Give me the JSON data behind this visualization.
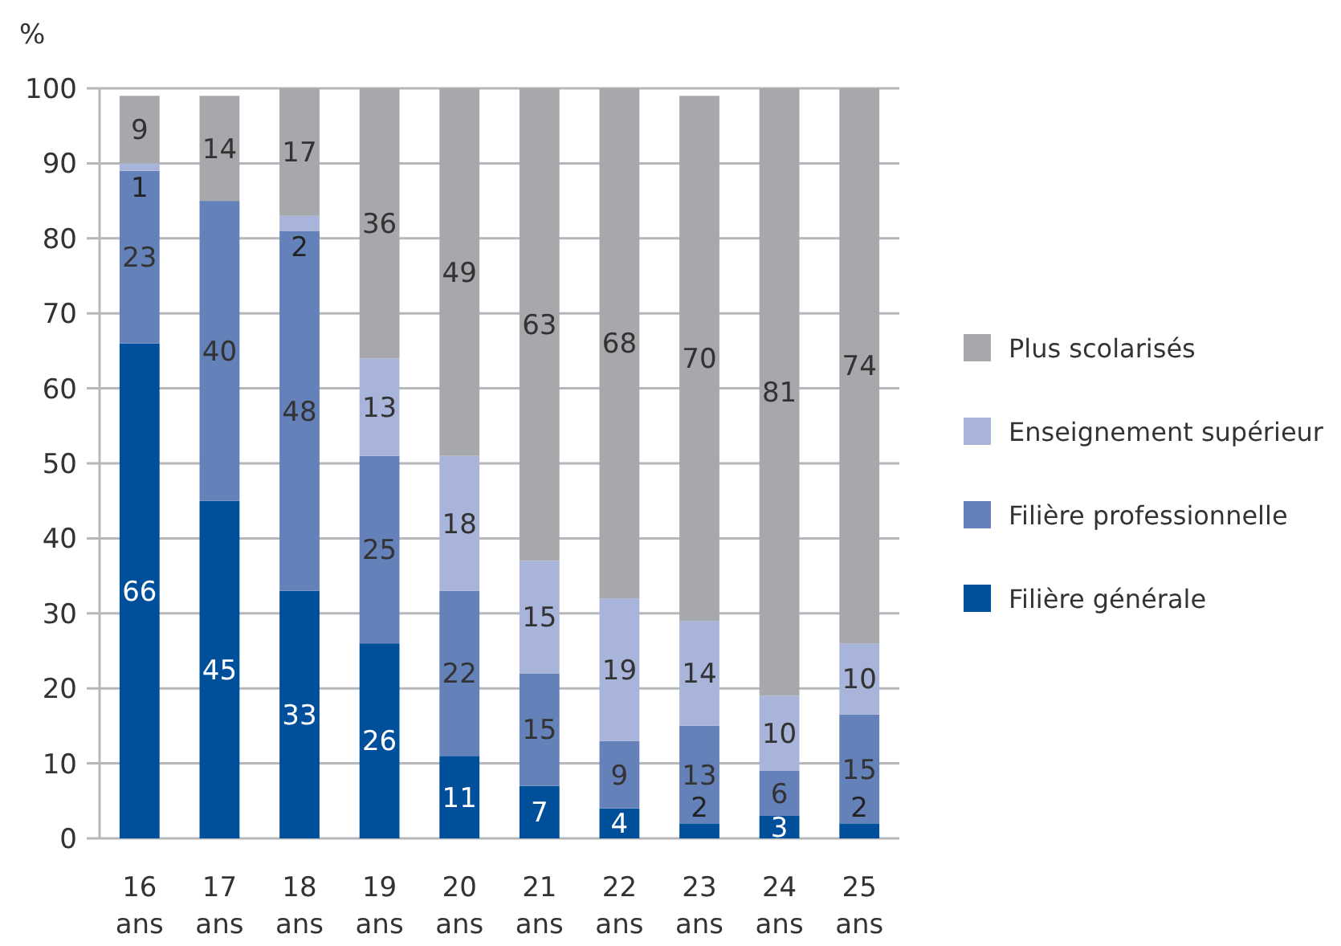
{
  "chart_data": {
    "type": "bar",
    "stacked": true,
    "ylabel": "%",
    "categories": [
      "16 ans",
      "17 ans",
      "18 ans",
      "19 ans",
      "20 ans",
      "21 ans",
      "22 ans",
      "23 ans",
      "24 ans",
      "25 ans"
    ],
    "series": [
      {
        "name": "Filière générale",
        "color": "#004f9a",
        "values": [
          66,
          45,
          33,
          26,
          11,
          7,
          4,
          2,
          3,
          2
        ]
      },
      {
        "name": "Filière professionnelle",
        "color": "#6581b9",
        "values": [
          23,
          40,
          48,
          25,
          22,
          15,
          9,
          13,
          6,
          14.5
        ],
        "value_labels": [
          "23",
          "40",
          "48",
          "25",
          "22",
          "15",
          "9",
          "13",
          "6",
          "15"
        ]
      },
      {
        "name": "Enseignement supérieur",
        "color": "#a8b4da",
        "values": [
          1,
          null,
          2,
          13,
          18,
          15,
          19,
          14,
          10,
          9.5
        ],
        "value_labels": [
          "1",
          null,
          "2",
          "13",
          "18",
          "15",
          "19",
          "14",
          "10",
          "10"
        ]
      },
      {
        "name": "Plus scolarisés",
        "color": "#a6a8ab",
        "values": [
          9,
          14,
          17,
          36,
          49,
          63,
          68,
          70,
          81,
          74
        ]
      }
    ],
    "ylim": [
      0,
      100
    ],
    "yticks": [
      0,
      10,
      20,
      30,
      40,
      50,
      60,
      70,
      80,
      90,
      100
    ],
    "grid": "y",
    "legend": "right",
    "data_labels": true
  }
}
